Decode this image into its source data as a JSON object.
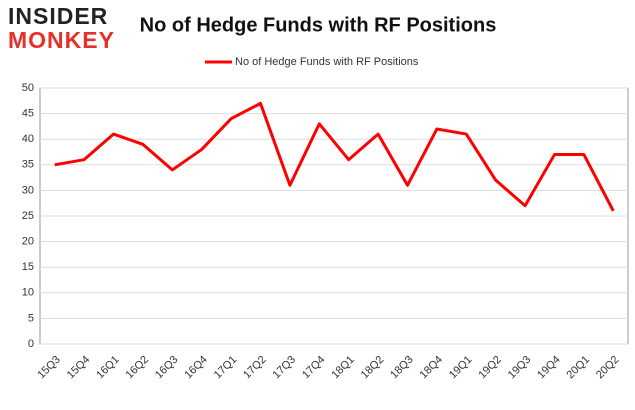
{
  "logo": {
    "line1": "INSIDER",
    "line2": "MONKEY"
  },
  "chart_data": {
    "type": "line",
    "title": "No of Hedge Funds with RF Positions",
    "categories": [
      "15Q3",
      "15Q4",
      "16Q1",
      "16Q2",
      "16Q3",
      "16Q4",
      "17Q1",
      "17Q2",
      "17Q3",
      "17Q4",
      "18Q1",
      "18Q2",
      "18Q3",
      "18Q4",
      "19Q1",
      "19Q2",
      "19Q3",
      "19Q4",
      "20Q1",
      "20Q2"
    ],
    "series": [
      {
        "name": "No of Hedge Funds with RF Positions",
        "color": "#ff0000",
        "values": [
          35,
          36,
          41,
          39,
          34,
          38,
          44,
          47,
          31,
          43,
          36,
          41,
          31,
          42,
          41,
          32,
          27,
          37,
          37,
          26
        ]
      }
    ],
    "ylim": [
      0,
      50
    ],
    "yticks": [
      0,
      5,
      10,
      15,
      20,
      25,
      30,
      35,
      40,
      45,
      50
    ],
    "grid": true,
    "legend": "top"
  }
}
